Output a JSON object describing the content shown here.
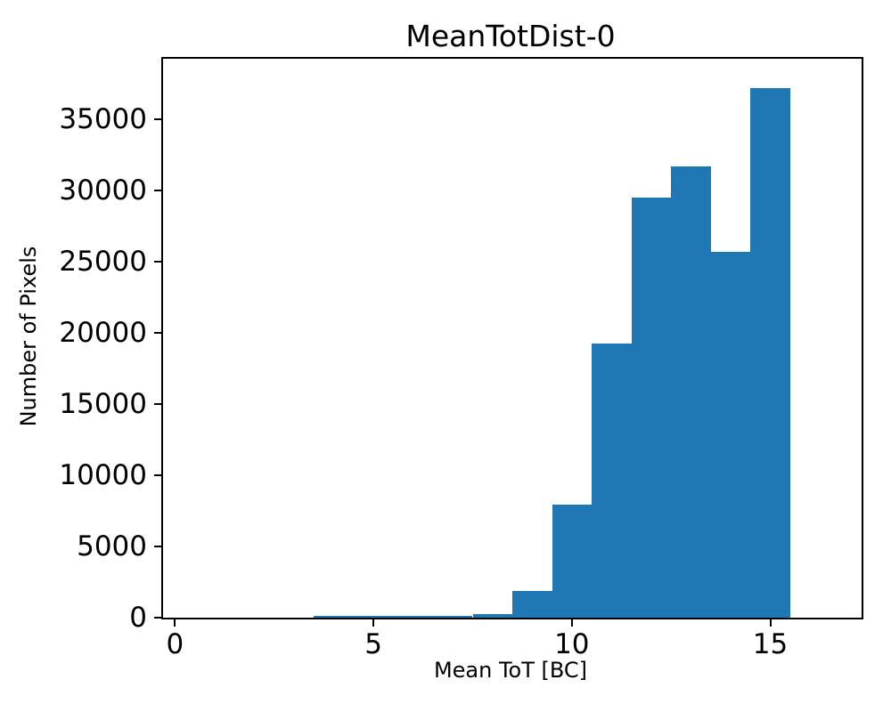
{
  "chart_data": {
    "type": "bar",
    "subtype": "histogram",
    "title": "MeanTotDist-0",
    "xlabel": "Mean ToT [BC]",
    "ylabel": "Number of Pixels",
    "bin_edges": [
      3.5,
      4.5,
      5.5,
      6.5,
      7.5,
      8.5,
      9.5,
      10.5,
      11.5,
      12.5,
      13.5,
      14.5,
      15.5
    ],
    "bin_centers": [
      4,
      5,
      6,
      7,
      8,
      9,
      10,
      11,
      12,
      13,
      14,
      15
    ],
    "values": [
      110,
      120,
      120,
      140,
      280,
      1870,
      7940,
      19250,
      29500,
      31700,
      25700,
      37200
    ],
    "xticks": [
      0,
      5,
      10,
      15
    ],
    "yticks": [
      0,
      5000,
      10000,
      15000,
      20000,
      25000,
      30000,
      35000
    ],
    "xlim": [
      -0.3,
      17.3
    ],
    "ylim": [
      0,
      39250
    ],
    "bar_color": "#1f77b4",
    "axis_color": "#000000",
    "background_color": "#ffffff",
    "grid": false,
    "legend": null
  }
}
